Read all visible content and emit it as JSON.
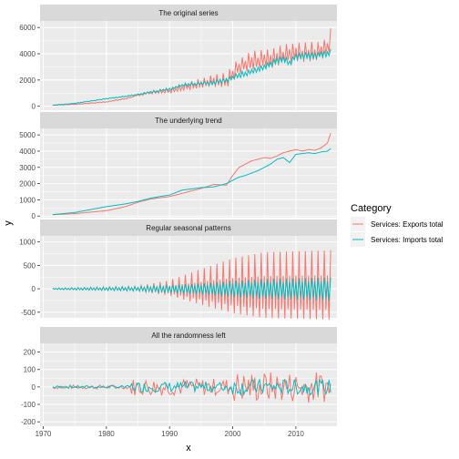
{
  "chart_data": {
    "type": "line",
    "xlabel": "x",
    "ylabel": "y",
    "x_ticks": [
      1970,
      1980,
      1990,
      2000,
      2010
    ],
    "legend": {
      "title": "Category",
      "position": "right",
      "entries": [
        "Services: Exports total",
        "Services: Imports total"
      ]
    },
    "colors": {
      "exports": "#F8766D",
      "imports": "#00BFC4",
      "panel_bg": "#EBEBEB",
      "strip_bg": "#D9D9D9"
    },
    "grid": true,
    "panels": [
      {
        "title": "The original series",
        "ylim": [
          -300,
          6500
        ],
        "y_ticks": [
          0,
          2000,
          4000,
          6000
        ],
        "component": "original"
      },
      {
        "title": "The underlying trend",
        "ylim": [
          -100,
          5400
        ],
        "y_ticks": [
          0,
          1000,
          2000,
          3000,
          4000,
          5000
        ],
        "component": "trend"
      },
      {
        "title": "Regular seasonal patterns",
        "ylim": [
          -620,
          1130
        ],
        "y_ticks": [
          -500,
          0,
          500,
          1000
        ],
        "component": "seasonal"
      },
      {
        "title": "All the randomness left",
        "ylim": [
          -225,
          250
        ],
        "y_ticks": [
          -200,
          -100,
          0,
          100,
          200
        ],
        "component": "random"
      }
    ],
    "x_range": [
      1969.5,
      2016.5
    ],
    "series_trend": [
      {
        "name": "Services: Exports total",
        "x": [
          1971.5,
          1975,
          1980,
          1983,
          1985,
          1987,
          1990,
          1992,
          1995,
          1997,
          1999,
          2000,
          2001,
          2002,
          2003,
          2004,
          2005,
          2006,
          2007,
          2008,
          2009,
          2010,
          2011,
          2012,
          2013,
          2014,
          2015,
          2015.5
        ],
        "values": [
          80,
          150,
          330,
          580,
          850,
          1050,
          1200,
          1400,
          1700,
          1950,
          1900,
          2500,
          3000,
          3200,
          3400,
          3500,
          3600,
          3550,
          3700,
          3900,
          4000,
          4100,
          4000,
          4100,
          4050,
          4200,
          4500,
          5100
        ]
      },
      {
        "name": "Services: Imports total",
        "x": [
          1971.5,
          1975,
          1980,
          1983,
          1985,
          1987,
          1990,
          1992,
          1995,
          1997,
          1999,
          2000,
          2001,
          2002,
          2003,
          2004,
          2005,
          2006,
          2007,
          2008,
          2009,
          2010,
          2011,
          2012,
          2013,
          2014,
          2015,
          2015.5
        ],
        "values": [
          90,
          220,
          580,
          750,
          900,
          1100,
          1300,
          1600,
          1750,
          1800,
          2000,
          2200,
          2400,
          2500,
          2650,
          2800,
          3000,
          3200,
          3500,
          3600,
          3300,
          3800,
          3850,
          3900,
          3850,
          3950,
          4000,
          4150
        ]
      }
    ],
    "seasonal_amplitude": {
      "exports": {
        "x": [
          1971.5,
          1985,
          1990,
          1995,
          2000,
          2005,
          2015.5
        ],
        "values": [
          15,
          60,
          180,
          420,
          650,
          780,
          820
        ]
      },
      "imports": {
        "x": [
          1971.5,
          1985,
          1990,
          1995,
          2000,
          2005,
          2015.5
        ],
        "values": [
          15,
          50,
          90,
          130,
          190,
          230,
          270
        ]
      }
    }
  }
}
